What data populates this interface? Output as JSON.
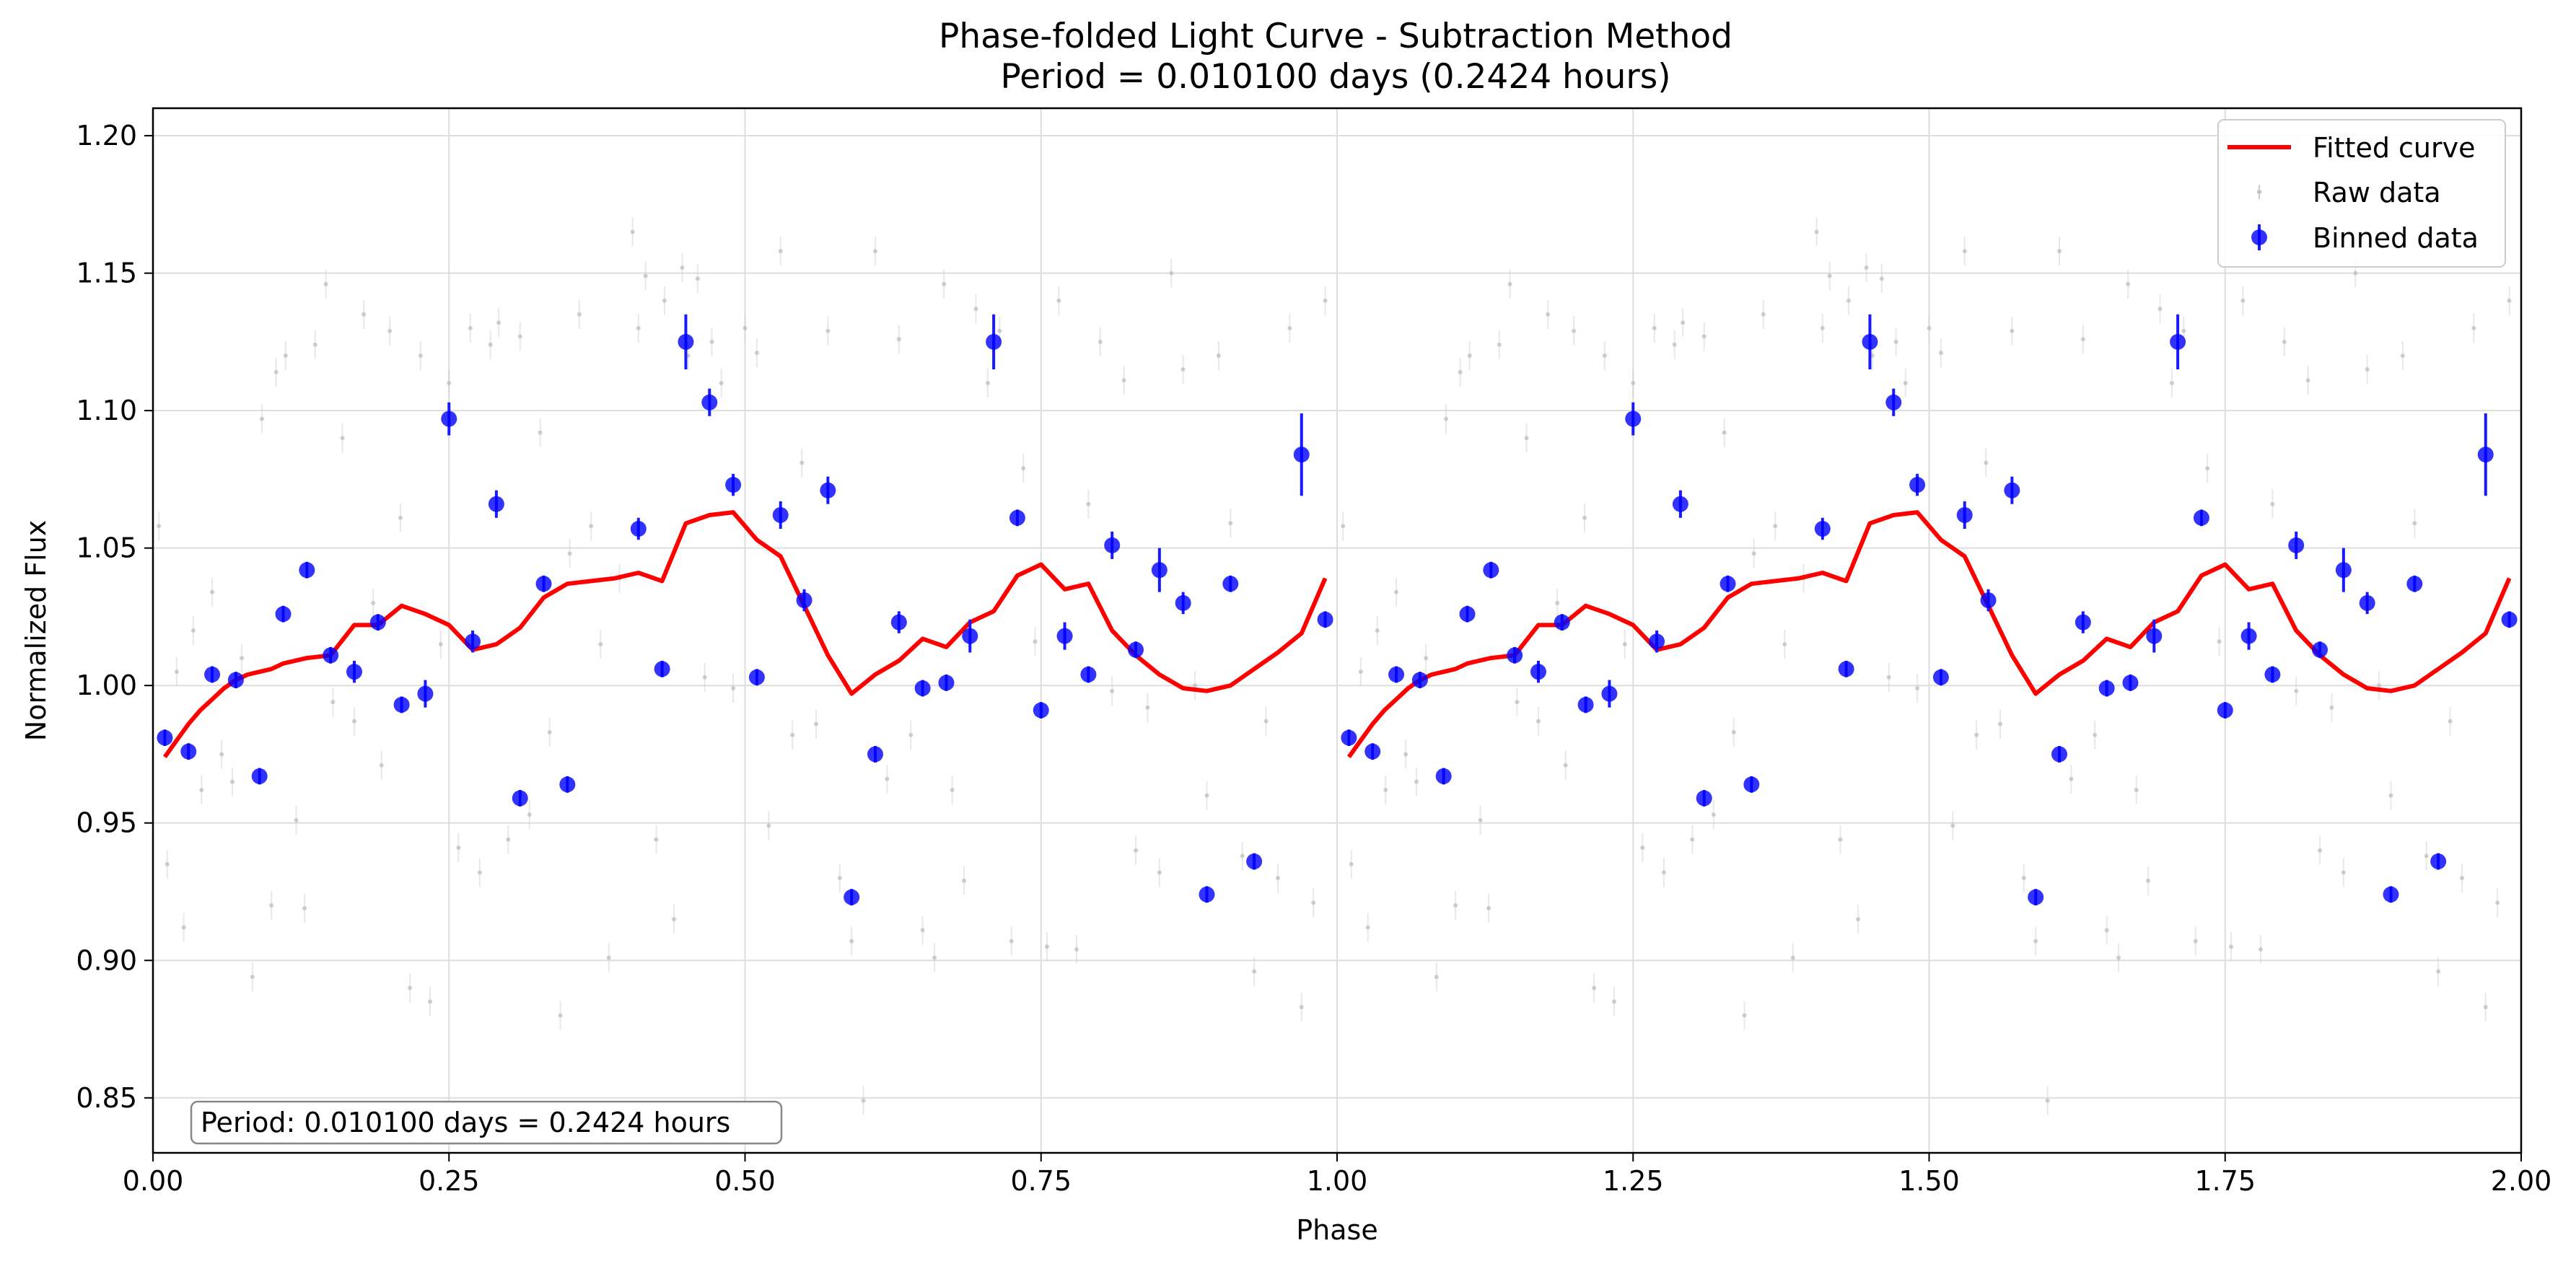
{
  "chart_data": {
    "type": "scatter",
    "title": "Phase-folded Light Curve - Subtraction Method",
    "subtitle": "Period = 0.010100 days (0.2424 hours)",
    "xlabel": "Phase",
    "ylabel": "Normalized Flux",
    "xlim": [
      0.0,
      2.0
    ],
    "ylim": [
      0.83,
      1.21
    ],
    "x_ticks": [
      "0.00",
      "0.25",
      "0.50",
      "0.75",
      "1.00",
      "1.25",
      "1.50",
      "1.75",
      "2.00"
    ],
    "x_tick_values": [
      0,
      0.25,
      0.5,
      0.75,
      1.0,
      1.25,
      1.5,
      1.75,
      2.0
    ],
    "y_ticks": [
      "0.85",
      "0.90",
      "0.95",
      "1.00",
      "1.05",
      "1.10",
      "1.15",
      "1.20"
    ],
    "y_tick_values": [
      0.85,
      0.9,
      0.95,
      1.0,
      1.05,
      1.1,
      1.15,
      1.2
    ],
    "grid": true,
    "legend_position": "top-right",
    "annotation": "Period: 0.010100 days = 0.2424 hours",
    "colors": {
      "fitted": "#ff0000",
      "binned": "#0000ff",
      "raw": "#bbbbbb"
    },
    "series": [
      {
        "name": "Fitted curve",
        "kind": "line",
        "repeat_offset": 1.0,
        "x": [
          0.01,
          0.02,
          0.03,
          0.04,
          0.05,
          0.06,
          0.07,
          0.08,
          0.09,
          0.1,
          0.11,
          0.13,
          0.15,
          0.17,
          0.19,
          0.21,
          0.23,
          0.25,
          0.27,
          0.29,
          0.31,
          0.33,
          0.35,
          0.37,
          0.39,
          0.41,
          0.43,
          0.45,
          0.47,
          0.49,
          0.51,
          0.53,
          0.55,
          0.57,
          0.59,
          0.61,
          0.63,
          0.65,
          0.67,
          0.69,
          0.71,
          0.73,
          0.75,
          0.77,
          0.79,
          0.81,
          0.83,
          0.85,
          0.87,
          0.89,
          0.91,
          0.93,
          0.95,
          0.97,
          0.99
        ],
        "y": [
          0.974,
          0.98,
          0.986,
          0.991,
          0.995,
          0.999,
          1.002,
          1.004,
          1.005,
          1.006,
          1.008,
          1.01,
          1.011,
          1.022,
          1.022,
          1.029,
          1.026,
          1.022,
          1.013,
          1.015,
          1.021,
          1.032,
          1.037,
          1.038,
          1.039,
          1.041,
          1.038,
          1.059,
          1.062,
          1.063,
          1.053,
          1.047,
          1.029,
          1.011,
          0.997,
          1.004,
          1.009,
          1.017,
          1.014,
          1.023,
          1.027,
          1.04,
          1.044,
          1.035,
          1.037,
          1.02,
          1.011,
          1.004,
          0.999,
          0.998,
          1.0,
          1.006,
          1.012,
          1.019,
          1.039
        ]
      },
      {
        "name": "Raw data",
        "kind": "points",
        "repeat_offset": 1.0,
        "x": [
          0.005,
          0.012,
          0.02,
          0.026,
          0.034,
          0.041,
          0.05,
          0.058,
          0.067,
          0.075,
          0.084,
          0.092,
          0.1,
          0.104,
          0.112,
          0.121,
          0.128,
          0.137,
          0.146,
          0.152,
          0.16,
          0.17,
          0.178,
          0.186,
          0.193,
          0.2,
          0.209,
          0.217,
          0.226,
          0.234,
          0.243,
          0.25,
          0.258,
          0.268,
          0.276,
          0.285,
          0.292,
          0.3,
          0.31,
          0.318,
          0.327,
          0.335,
          0.344,
          0.352,
          0.36,
          0.37,
          0.378,
          0.385,
          0.394,
          0.405,
          0.41,
          0.416,
          0.425,
          0.432,
          0.44,
          0.447,
          0.452,
          0.46,
          0.466,
          0.472,
          0.48,
          0.49,
          0.5,
          0.51,
          0.52,
          0.53,
          0.54,
          0.548,
          0.56,
          0.57,
          0.58,
          0.59,
          0.6,
          0.61,
          0.62,
          0.63,
          0.64,
          0.65,
          0.66,
          0.668,
          0.675,
          0.685,
          0.695,
          0.705,
          0.715,
          0.725,
          0.735,
          0.745,
          0.755,
          0.765,
          0.78,
          0.79,
          0.8,
          0.81,
          0.82,
          0.83,
          0.84,
          0.85,
          0.86,
          0.87,
          0.88,
          0.89,
          0.9,
          0.91,
          0.92,
          0.93,
          0.94,
          0.95,
          0.96,
          0.97,
          0.98,
          0.99
        ],
        "y": [
          1.058,
          0.935,
          1.005,
          0.912,
          1.02,
          0.962,
          1.034,
          0.975,
          0.965,
          1.01,
          0.894,
          1.097,
          0.92,
          1.114,
          1.12,
          0.951,
          0.919,
          1.124,
          1.146,
          0.994,
          1.09,
          0.987,
          1.135,
          1.03,
          0.971,
          1.129,
          1.061,
          0.89,
          1.12,
          0.885,
          1.015,
          1.11,
          0.941,
          1.13,
          0.932,
          1.124,
          1.132,
          0.944,
          1.127,
          0.953,
          1.092,
          0.983,
          0.88,
          1.048,
          1.135,
          1.058,
          1.015,
          0.901,
          1.039,
          1.165,
          1.13,
          1.149,
          0.944,
          1.14,
          0.915,
          1.152,
          1.12,
          1.148,
          1.003,
          1.125,
          1.11,
          0.999,
          1.13,
          1.121,
          0.949,
          1.158,
          0.982,
          1.081,
          0.986,
          1.129,
          0.93,
          0.907,
          0.849,
          1.158,
          0.966,
          1.126,
          0.982,
          0.911,
          0.901,
          1.146,
          0.962,
          0.929,
          1.137,
          1.11,
          1.129,
          0.907,
          1.079,
          1.016,
          0.905,
          1.14,
          0.904,
          1.066,
          1.125,
          0.998,
          1.111,
          0.94,
          0.992,
          0.932,
          1.15,
          1.115,
          1.0,
          0.96,
          1.12,
          1.059,
          0.938,
          0.896,
          0.987,
          0.93,
          1.13,
          0.883,
          0.921,
          1.14
        ]
      },
      {
        "name": "Binned data",
        "kind": "errorbar",
        "repeat_offset": 1.0,
        "x": [
          0.01,
          0.03,
          0.05,
          0.07,
          0.09,
          0.11,
          0.13,
          0.15,
          0.17,
          0.19,
          0.21,
          0.23,
          0.25,
          0.27,
          0.29,
          0.31,
          0.33,
          0.35,
          0.41,
          0.43,
          0.45,
          0.47,
          0.49,
          0.51,
          0.53,
          0.55,
          0.57,
          0.59,
          0.61,
          0.63,
          0.65,
          0.67,
          0.69,
          0.71,
          0.73,
          0.75,
          0.77,
          0.79,
          0.81,
          0.83,
          0.85,
          0.87,
          0.89,
          0.91,
          0.93,
          0.97,
          0.99
        ],
        "y": [
          0.981,
          0.976,
          1.004,
          1.002,
          0.967,
          1.026,
          1.042,
          1.011,
          1.005,
          1.023,
          0.993,
          0.997,
          1.097,
          1.016,
          1.066,
          0.959,
          1.037,
          0.964,
          1.057,
          1.006,
          1.125,
          1.103,
          1.073,
          1.003,
          1.062,
          1.031,
          1.071,
          0.923,
          0.975,
          1.023,
          0.999,
          1.001,
          1.018,
          1.125,
          1.061,
          0.991,
          1.018,
          1.004,
          1.051,
          1.013,
          1.042,
          1.03,
          0.924,
          1.037,
          0.936,
          1.084,
          1.024
        ],
        "err": [
          0.003,
          0.003,
          0.003,
          0.003,
          0.003,
          0.003,
          0.003,
          0.003,
          0.004,
          0.003,
          0.003,
          0.005,
          0.006,
          0.004,
          0.005,
          0.003,
          0.003,
          0.003,
          0.004,
          0.003,
          0.01,
          0.005,
          0.004,
          0.003,
          0.005,
          0.004,
          0.005,
          0.003,
          0.003,
          0.004,
          0.003,
          0.003,
          0.006,
          0.01,
          0.003,
          0.003,
          0.005,
          0.003,
          0.005,
          0.003,
          0.008,
          0.004,
          0.003,
          0.003,
          0.003,
          0.015,
          0.003
        ]
      }
    ]
  }
}
